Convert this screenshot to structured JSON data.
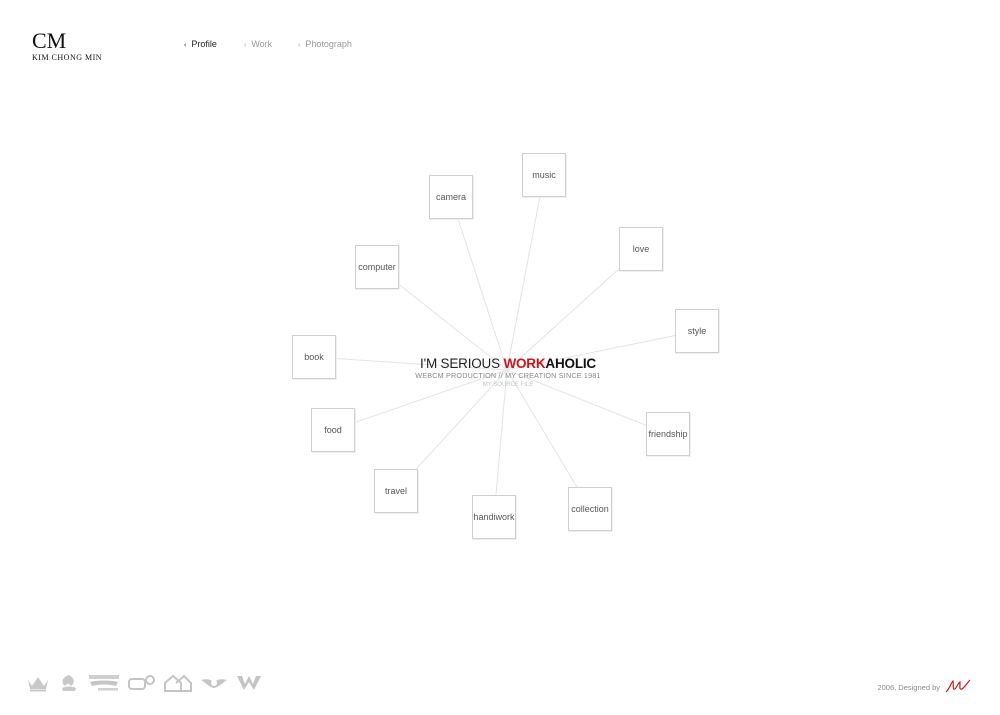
{
  "brand": {
    "mark": "CM",
    "name": "KIM CHONG MIN"
  },
  "nav": [
    {
      "label": "Profile",
      "active": true
    },
    {
      "label": "Work",
      "active": false
    },
    {
      "label": "Photograph",
      "active": false
    }
  ],
  "hub": {
    "headline_plain": "I'M SERIOUS ",
    "headline_red": "WORK",
    "headline_bold": "AHOLIC",
    "subline": "WEBCM PRODUCTION // MY CREATION SINCE 1981",
    "source_link": "MY SOURCE FILE"
  },
  "topics": [
    "music",
    "camera",
    "love",
    "computer",
    "style",
    "book",
    "friendship",
    "food",
    "collection",
    "travel",
    "handiwork"
  ],
  "footer": {
    "credit": "2006, Designed by",
    "award_icons": [
      "crown-icon",
      "leaf-award-icon",
      "nominate-award-icon",
      "web-award-icon",
      "house-award-icon",
      "wings-award-icon",
      "w-award-icon"
    ]
  },
  "colors": {
    "accent": "#d0141b",
    "node_border": "#cfcfcf",
    "spoke": "#e4e4e4"
  }
}
